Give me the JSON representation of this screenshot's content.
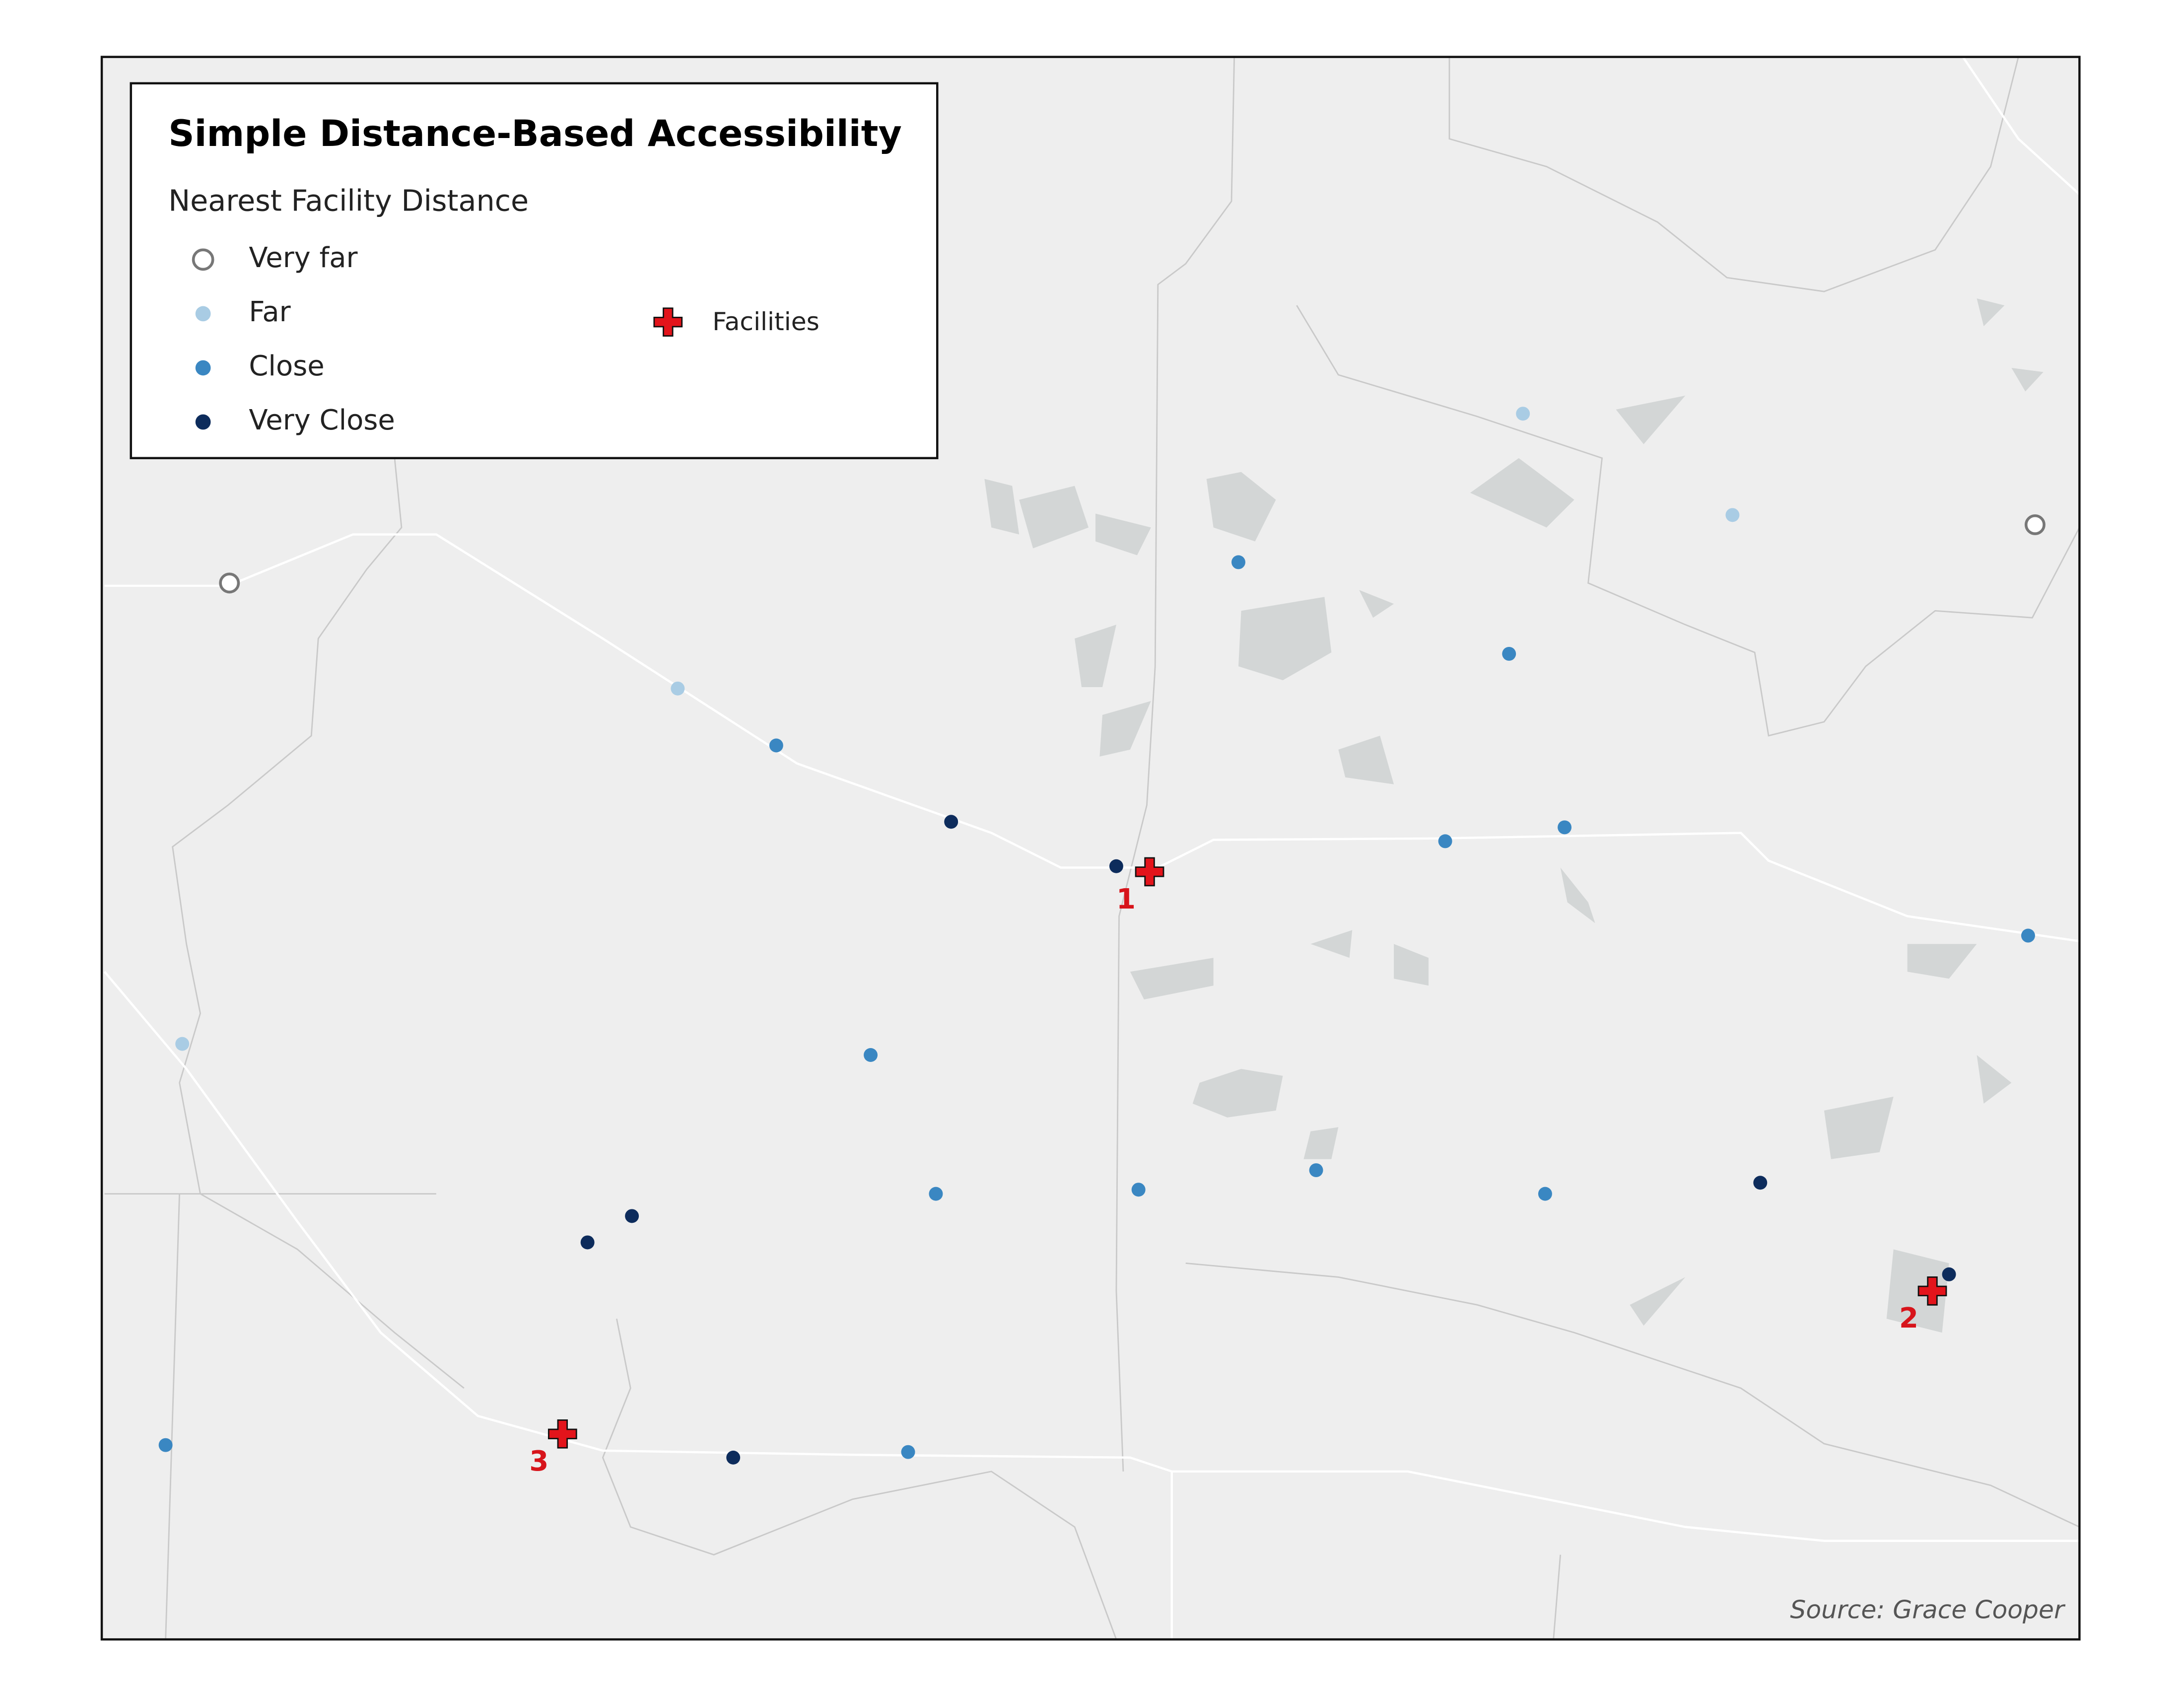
{
  "legend": {
    "title": "Simple Distance-Based Accessibility",
    "subtitle": "Nearest Facility Distance",
    "classes": [
      {
        "label": "Very far",
        "color": "#777777"
      },
      {
        "label": "Far",
        "color": "#a9cce4"
      },
      {
        "label": "Close",
        "color": "#3a87c2"
      },
      {
        "label": "Very Close",
        "color": "#0d2c5c"
      }
    ],
    "facilities": {
      "label": "Facilities",
      "color": "#e3141b"
    }
  },
  "facilities": [
    {
      "label": "1"
    },
    {
      "label": "2"
    },
    {
      "label": "3"
    }
  ],
  "source": "Source: Grace Cooper"
}
